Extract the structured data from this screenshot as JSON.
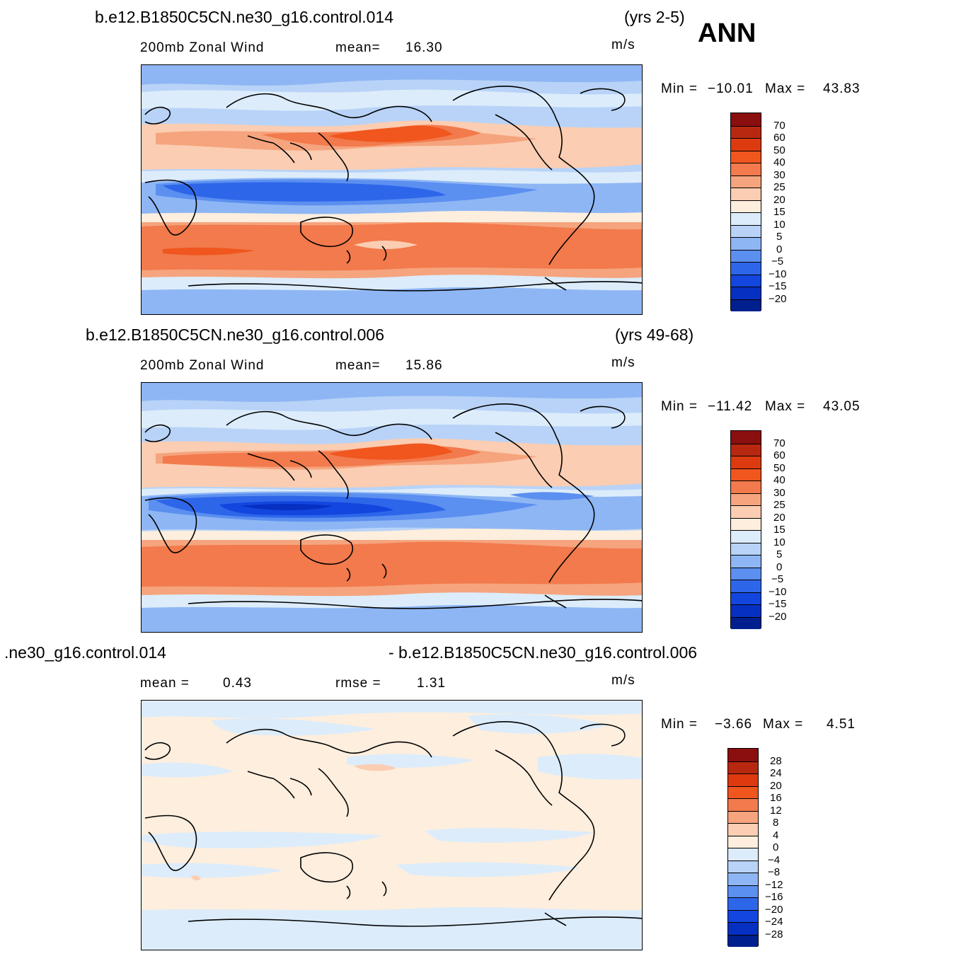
{
  "season": "ANN",
  "units_label": "m/s",
  "panels": [
    {
      "id": "top",
      "case_title": "b.e12.B1850C5CN.ne30_g16.control.014",
      "years": "(yrs 2-5)",
      "variable": "200mb Zonal Wind",
      "stat1_label": "mean=",
      "stat1_value": "16.30",
      "minmax": {
        "min_label": "Min =",
        "min_value": "−10.01",
        "max_label": "Max =",
        "max_value": "43.83"
      },
      "colorbar": {
        "labels": [
          "70",
          "60",
          "50",
          "40",
          "30",
          "25",
          "20",
          "15",
          "10",
          "5",
          "0",
          "−5",
          "−10",
          "−15",
          "−20"
        ],
        "colors": [
          "#8b0f0f",
          "#b82810",
          "#dd3a0f",
          "#f0561e",
          "#f27a4c",
          "#f5a47e",
          "#fbcdb2",
          "#fdeede",
          "#dcecfb",
          "#b8d3f7",
          "#8eb6f4",
          "#5b8ff0",
          "#2e66ea",
          "#1246de",
          "#0630c2",
          "#001f8f"
        ]
      },
      "zonal_wind_bands_lat_deg": [
        {
          "from": 90,
          "to": 75,
          "value": "0 to 5"
        },
        {
          "from": 75,
          "to": 60,
          "value": "5 to 15"
        },
        {
          "from": 60,
          "to": 45,
          "value": "10 to 20"
        },
        {
          "from": 45,
          "to": 25,
          "value": "25 to 40"
        },
        {
          "from": 25,
          "to": 12,
          "value": "5 to 15"
        },
        {
          "from": 12,
          "to": -8,
          "value": "-10 to 0"
        },
        {
          "from": -8,
          "to": -20,
          "value": "10 to 20"
        },
        {
          "from": -20,
          "to": -45,
          "value": "25 to 40"
        },
        {
          "from": -45,
          "to": -60,
          "value": "15 to 25"
        },
        {
          "from": -60,
          "to": -90,
          "value": "0 to 10"
        }
      ]
    },
    {
      "id": "middle",
      "case_title": "b.e12.B1850C5CN.ne30_g16.control.006",
      "years": "(yrs 49-68)",
      "variable": "200mb Zonal Wind",
      "stat1_label": "mean=",
      "stat1_value": "15.86",
      "minmax": {
        "min_label": "Min =",
        "min_value": "−11.42",
        "max_label": "Max =",
        "max_value": "43.05"
      },
      "colorbar": {
        "labels": [
          "70",
          "60",
          "50",
          "40",
          "30",
          "25",
          "20",
          "15",
          "10",
          "5",
          "0",
          "−5",
          "−10",
          "−15",
          "−20"
        ],
        "colors": [
          "#8b0f0f",
          "#b82810",
          "#dd3a0f",
          "#f0561e",
          "#f27a4c",
          "#f5a47e",
          "#fbcdb2",
          "#fdeede",
          "#dcecfb",
          "#b8d3f7",
          "#8eb6f4",
          "#5b8ff0",
          "#2e66ea",
          "#1246de",
          "#0630c2",
          "#001f8f"
        ]
      }
    },
    {
      "id": "difference",
      "case_title_left": ".ne30_g16.control.014",
      "case_title_right": "- b.e12.B1850C5CN.ne30_g16.control.006",
      "stat1_label": "mean =",
      "stat1_value": "0.43",
      "stat2_label": "rmse =",
      "stat2_value": "1.31",
      "minmax": {
        "min_label": "Min =",
        "min_value": "−3.66",
        "max_label": "Max =",
        "max_value": "4.51"
      },
      "colorbar": {
        "labels": [
          "28",
          "24",
          "20",
          "16",
          "12",
          "8",
          "4",
          "0",
          "−4",
          "−8",
          "−12",
          "−16",
          "−20",
          "−24",
          "−28"
        ],
        "colors": [
          "#8b0f0f",
          "#b82810",
          "#dd3a0f",
          "#f0561e",
          "#f27a4c",
          "#f5a47e",
          "#fbcdb2",
          "#fdeede",
          "#dcecfb",
          "#b8d3f7",
          "#8eb6f4",
          "#5b8ff0",
          "#2e66ea",
          "#1246de",
          "#0630c2",
          "#001f8f"
        ]
      }
    }
  ]
}
